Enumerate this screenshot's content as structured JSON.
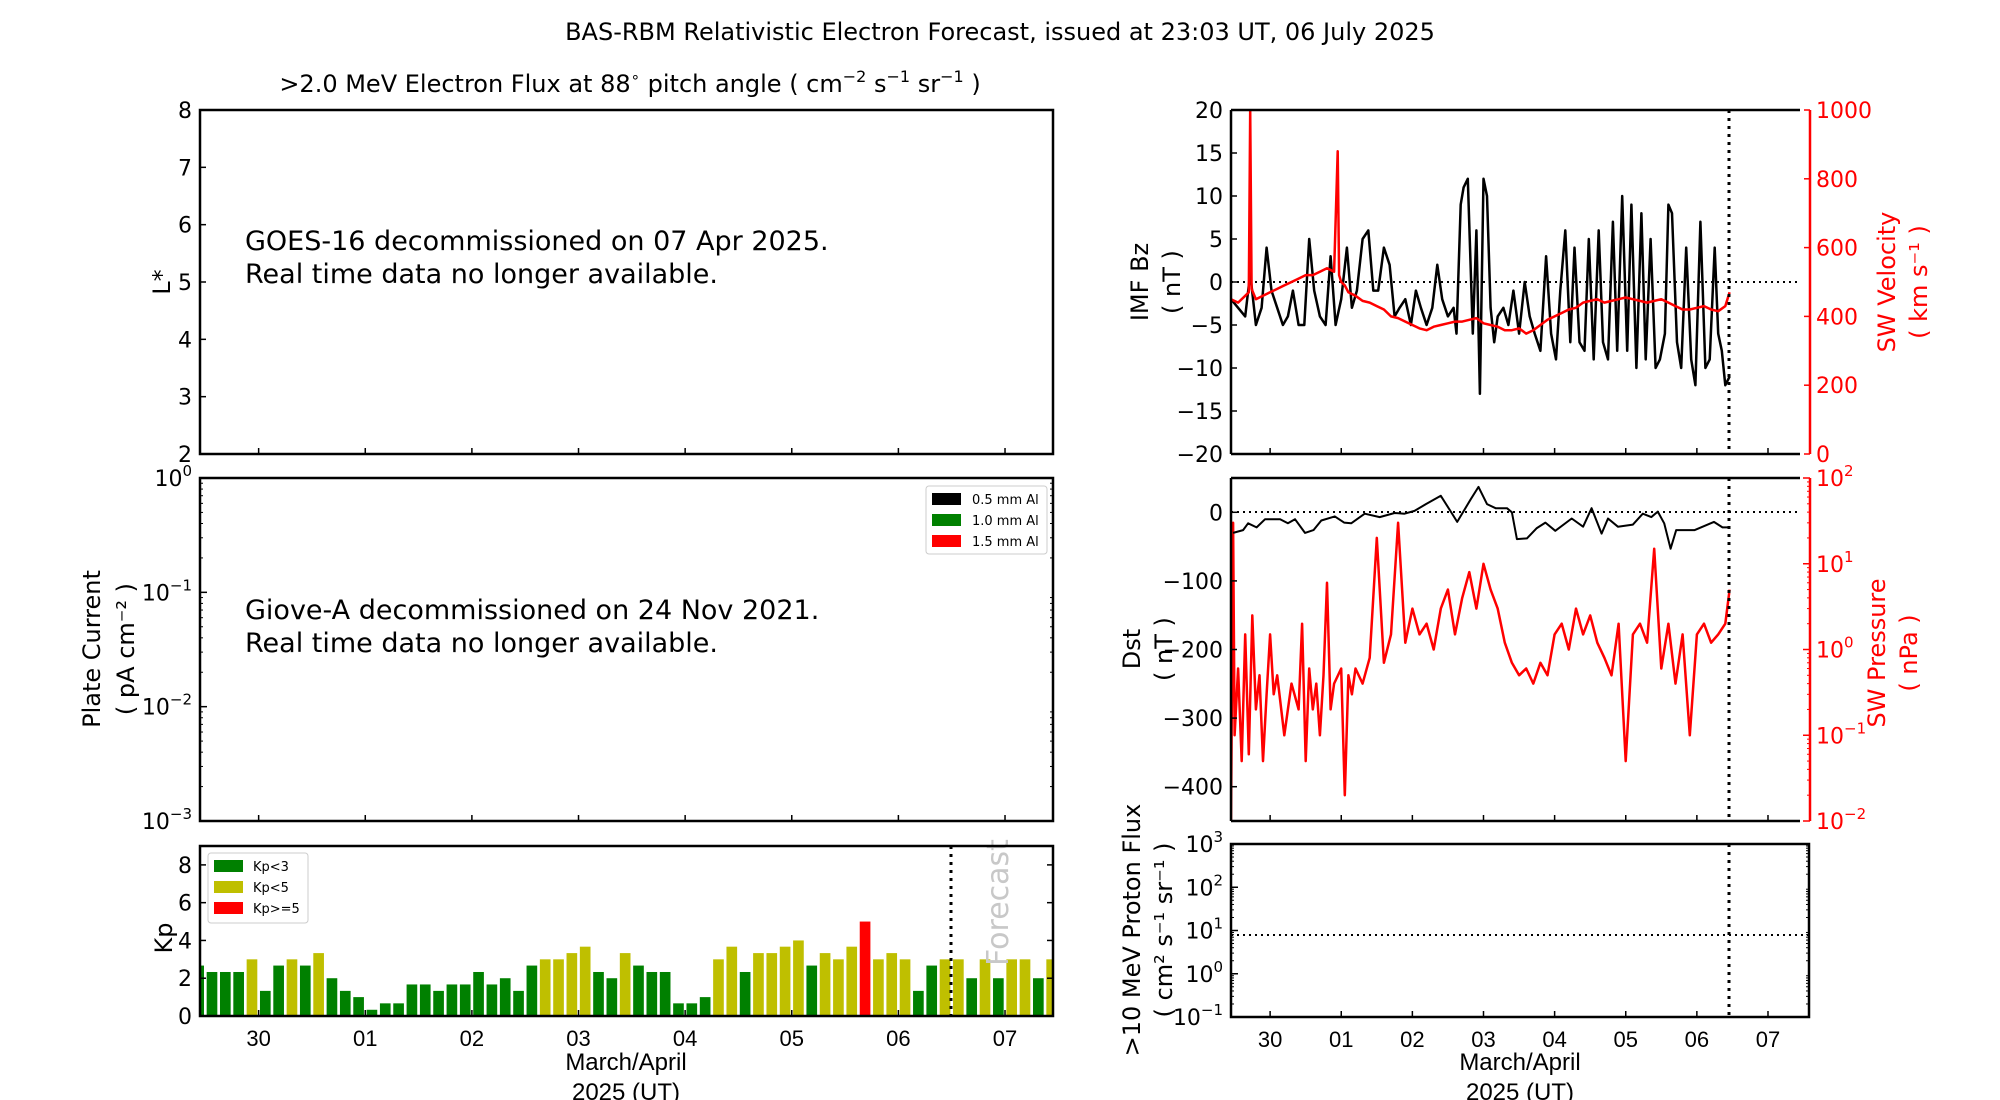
{
  "title": "BAS-RBM Relativistic Electron Forecast, issued at 23:03 UT, 06 July 2025",
  "x_axis": {
    "unit": "days since first labelled tick",
    "range": [
      -0.55,
      7.45
    ],
    "ticks": [
      0,
      1,
      2,
      3,
      4,
      5,
      6,
      7
    ],
    "tick_labels": [
      "30",
      "01",
      "02",
      "03",
      "04",
      "05",
      "06",
      "07"
    ],
    "xlabel_line1": "March/April",
    "xlabel_line2": "2025 (UT)",
    "issue_marker_day": 6.46
  },
  "chart_data": [
    {
      "id": "electron_flux",
      "type": "heatmap",
      "title": ">2.0 MeV Electron Flux at 88° pitch angle ( cm⁻² s⁻¹ sr⁻¹ )",
      "title_parts": {
        "main": ">2.0 MeV Electron Flux at 88",
        "deg": "∘",
        "rest": " pitch angle ( cm",
        "sup1": "−2",
        "s": " s",
        "sup2": "−1",
        "sr": " sr",
        "sup3": "−1",
        "close": " )"
      },
      "ylabel": "L*",
      "ylim": [
        2,
        8
      ],
      "yticks": [
        2,
        3,
        4,
        5,
        6,
        7,
        8
      ],
      "notice_line1": "GOES-16 decommissioned on 07 Apr 2025.",
      "notice_line2": "Real time data no longer available."
    },
    {
      "id": "plate_current",
      "type": "line",
      "ylabel_line1": "Plate Current",
      "ylabel_line2": "( pA cm⁻² )",
      "yscale": "log",
      "ylim": [
        0.001,
        1
      ],
      "yticks": [
        {
          "base": "10",
          "exp": "−3"
        },
        {
          "base": "10",
          "exp": "−2"
        },
        {
          "base": "10",
          "exp": "−1"
        },
        {
          "base": "10",
          "exp": "0"
        }
      ],
      "legend": [
        {
          "label": "0.5 mm Al",
          "color": "#000000"
        },
        {
          "label": "1.0 mm Al",
          "color": "#008000"
        },
        {
          "label": "1.5 mm Al",
          "color": "#ff0000"
        }
      ],
      "legend_position": "top-right",
      "notice_line1": "Giove-A decommissioned on 24 Nov 2021.",
      "notice_line2": "Real time data no longer available.",
      "series": []
    },
    {
      "id": "kp",
      "type": "bar",
      "ylabel": "Kp",
      "ylim": [
        0,
        9
      ],
      "yticks": [
        0,
        2,
        4,
        6,
        8
      ],
      "bar_interval_hours": 3,
      "first_bar_center_day": -0.5625,
      "legend": [
        {
          "label": "Kp<3",
          "color": "#008000"
        },
        {
          "label": "Kp<5",
          "color": "#bfbf00"
        },
        {
          "label": "Kp>=5",
          "color": "#ff0000"
        }
      ],
      "legend_position": "top-left",
      "forecast_label": "Forecast",
      "values": [
        2.67,
        2.33,
        2.33,
        2.33,
        3.0,
        1.33,
        2.67,
        3.0,
        2.67,
        3.33,
        2.0,
        1.33,
        1.0,
        0.33,
        0.67,
        0.67,
        1.67,
        1.67,
        1.33,
        1.67,
        1.67,
        2.33,
        1.67,
        2.0,
        1.33,
        2.67,
        3.0,
        3.0,
        3.33,
        3.67,
        2.33,
        2.0,
        3.33,
        2.67,
        2.33,
        2.33,
        0.67,
        0.67,
        1.0,
        3.0,
        3.67,
        2.33,
        3.33,
        3.33,
        3.67,
        4.0,
        2.67,
        3.33,
        3.0,
        3.67,
        5.0,
        3.0,
        3.33,
        3.0,
        1.33,
        2.67,
        3.0,
        3.0,
        2.0,
        3.0,
        2.0,
        3.0,
        3.0,
        2.0,
        3.0
      ]
    },
    {
      "id": "imf_sw_velocity",
      "type": "line",
      "ylabel_line1": "IMF Bz",
      "ylabel_line2": "( nT )",
      "ylim": [
        -20,
        20
      ],
      "yticks": [
        -20,
        -15,
        -10,
        -5,
        0,
        5,
        10,
        15,
        20
      ],
      "y2label_line1": "SW Velocity",
      "y2label_line2": "( km s⁻¹ )",
      "y2lim": [
        0,
        1000
      ],
      "y2ticks": [
        0,
        200,
        400,
        600,
        800,
        1000
      ],
      "reference_line_y": 0,
      "series": [
        {
          "name": "IMF Bz",
          "axis": "left",
          "color": "#000000",
          "x": [
            -0.55,
            -0.45,
            -0.35,
            -0.28,
            -0.2,
            -0.12,
            -0.05,
            0.02,
            0.1,
            0.18,
            0.25,
            0.32,
            0.4,
            0.48,
            0.55,
            0.62,
            0.7,
            0.78,
            0.85,
            0.92,
            1.0,
            1.08,
            1.15,
            1.22,
            1.3,
            1.38,
            1.45,
            1.52,
            1.6,
            1.68,
            1.75,
            1.82,
            1.9,
            1.98,
            2.05,
            2.12,
            2.2,
            2.28,
            2.35,
            2.42,
            2.5,
            2.58,
            2.62,
            2.68,
            2.72,
            2.78,
            2.85,
            2.9,
            2.95,
            3.0,
            3.05,
            3.1,
            3.15,
            3.2,
            3.28,
            3.35,
            3.42,
            3.5,
            3.58,
            3.65,
            3.72,
            3.8,
            3.88,
            3.95,
            4.02,
            4.08,
            4.15,
            4.22,
            4.28,
            4.35,
            4.42,
            4.48,
            4.55,
            4.62,
            4.68,
            4.75,
            4.82,
            4.88,
            4.95,
            5.02,
            5.08,
            5.15,
            5.22,
            5.28,
            5.35,
            5.42,
            5.48,
            5.55,
            5.6,
            5.65,
            5.72,
            5.78,
            5.85,
            5.92,
            5.98,
            6.05,
            6.12,
            6.18,
            6.25,
            6.3,
            6.35,
            6.4,
            6.46
          ],
          "y": [
            -2,
            -3,
            -4,
            1,
            -5,
            -3,
            4,
            -1,
            -3,
            -5,
            -4,
            -1,
            -5,
            -5,
            5,
            -1,
            -4,
            -5,
            3,
            -5,
            -2,
            4,
            -3,
            -1,
            5,
            6,
            -1,
            -1,
            4,
            2,
            -4,
            -3,
            -2,
            -5,
            -1,
            -3,
            -5,
            -3,
            2,
            -2,
            -4,
            -3,
            -6,
            9,
            11,
            12,
            -6,
            6,
            -13,
            12,
            10,
            -3,
            -7,
            -4,
            -3,
            -5,
            -1,
            -6,
            0,
            -4,
            -6,
            -8,
            3,
            -6,
            -9,
            -1,
            6,
            -7,
            4,
            -7,
            -8,
            5,
            -9,
            6,
            -7,
            -9,
            7,
            -8,
            10,
            -8,
            9,
            -10,
            8,
            -9,
            5,
            -10,
            -9,
            -6,
            9,
            8,
            -7,
            -10,
            4,
            -9,
            -12,
            7,
            -10,
            -9,
            4,
            -6,
            -8,
            -12,
            -11
          ]
        },
        {
          "name": "SW Velocity",
          "axis": "right",
          "color": "#ff0000",
          "x": [
            -0.55,
            -0.45,
            -0.35,
            -0.3,
            -0.28,
            -0.26,
            -0.2,
            -0.1,
            0.0,
            0.1,
            0.2,
            0.3,
            0.4,
            0.5,
            0.6,
            0.7,
            0.8,
            0.9,
            0.95,
            0.97,
            1.0,
            1.05,
            1.1,
            1.2,
            1.3,
            1.4,
            1.5,
            1.6,
            1.7,
            1.8,
            1.9,
            2.0,
            2.1,
            2.2,
            2.3,
            2.4,
            2.5,
            2.6,
            2.7,
            2.8,
            2.9,
            3.0,
            3.1,
            3.2,
            3.3,
            3.4,
            3.5,
            3.6,
            3.7,
            3.8,
            3.9,
            4.0,
            4.1,
            4.2,
            4.3,
            4.4,
            4.5,
            4.6,
            4.7,
            4.8,
            4.9,
            5.0,
            5.1,
            5.2,
            5.3,
            5.4,
            5.5,
            5.6,
            5.7,
            5.8,
            5.9,
            6.0,
            6.1,
            6.2,
            6.3,
            6.4,
            6.46
          ],
          "y": [
            450,
            440,
            460,
            470,
            1000,
            480,
            450,
            460,
            470,
            480,
            490,
            500,
            510,
            520,
            520,
            530,
            540,
            530,
            880,
            520,
            500,
            490,
            470,
            460,
            445,
            440,
            430,
            420,
            400,
            395,
            385,
            375,
            365,
            360,
            370,
            375,
            380,
            385,
            385,
            390,
            395,
            380,
            375,
            370,
            360,
            360,
            365,
            350,
            360,
            375,
            390,
            400,
            410,
            420,
            425,
            440,
            445,
            450,
            440,
            445,
            450,
            455,
            450,
            445,
            440,
            445,
            450,
            440,
            430,
            420,
            420,
            425,
            430,
            420,
            415,
            430,
            470
          ]
        }
      ]
    },
    {
      "id": "dst_sw_pressure",
      "type": "line",
      "ylabel_line1": "Dst",
      "ylabel_line2": "( nT )",
      "ylim": [
        -450,
        50
      ],
      "yticks": [
        -400,
        -300,
        -200,
        -100,
        0
      ],
      "y2label_line1": "SW Pressure",
      "y2label_line2": "( nPa )",
      "y2scale": "log",
      "y2lim": [
        0.01,
        100
      ],
      "y2ticks": [
        {
          "base": "10",
          "exp": "−2"
        },
        {
          "base": "10",
          "exp": "−1"
        },
        {
          "base": "10",
          "exp": "0"
        },
        {
          "base": "10",
          "exp": "1"
        },
        {
          "base": "10",
          "exp": "2"
        }
      ],
      "reference_line_y": 0,
      "series": [
        {
          "name": "Dst",
          "axis": "left",
          "color": "#000000",
          "x": [
            -0.52,
            -0.38,
            -0.31,
            -0.19,
            -0.07,
            0.14,
            0.25,
            0.35,
            0.49,
            0.61,
            0.72,
            0.91,
            1.04,
            1.14,
            1.33,
            1.54,
            1.75,
            1.89,
            2.03,
            2.19,
            2.4,
            2.54,
            2.63,
            2.82,
            2.93,
            3.05,
            3.17,
            3.33,
            3.4,
            3.47,
            3.61,
            3.75,
            3.87,
            4.01,
            4.24,
            4.4,
            4.52,
            4.66,
            4.75,
            4.89,
            5.1,
            5.24,
            5.36,
            5.45,
            5.54,
            5.63,
            5.71,
            5.97,
            6.24,
            6.36,
            6.44
          ],
          "y": [
            -30,
            -26,
            -16,
            -22,
            -10,
            -10,
            -16,
            -10,
            -30,
            -26,
            -12,
            -6,
            -15,
            -16,
            -2,
            -7,
            -1,
            -2,
            2,
            12,
            24,
            1,
            -14,
            19,
            37,
            12,
            6,
            6,
            0,
            -39,
            -38,
            -23,
            -15,
            -27,
            -9,
            -21,
            6,
            -31,
            -9,
            -21,
            -18,
            -2,
            -7,
            1,
            -16,
            -53,
            -26,
            -26,
            -14,
            -22,
            -22
          ]
        },
        {
          "name": "SW Pressure",
          "axis": "right",
          "color": "#ff0000",
          "x": [
            -0.55,
            -0.52,
            -0.5,
            -0.45,
            -0.4,
            -0.35,
            -0.3,
            -0.25,
            -0.2,
            -0.15,
            -0.1,
            -0.05,
            0.0,
            0.05,
            0.1,
            0.2,
            0.3,
            0.4,
            0.45,
            0.5,
            0.55,
            0.6,
            0.65,
            0.7,
            0.75,
            0.8,
            0.85,
            0.9,
            1.0,
            1.05,
            1.1,
            1.15,
            1.2,
            1.3,
            1.4,
            1.5,
            1.6,
            1.7,
            1.8,
            1.9,
            2.0,
            2.1,
            2.2,
            2.3,
            2.4,
            2.5,
            2.6,
            2.7,
            2.8,
            2.9,
            3.0,
            3.1,
            3.2,
            3.3,
            3.4,
            3.5,
            3.6,
            3.7,
            3.8,
            3.9,
            4.0,
            4.1,
            4.2,
            4.3,
            4.4,
            4.5,
            4.6,
            4.7,
            4.8,
            4.9,
            5.0,
            5.1,
            5.2,
            5.3,
            5.4,
            5.5,
            5.6,
            5.7,
            5.8,
            5.9,
            6.0,
            6.1,
            6.2,
            6.3,
            6.4,
            6.46
          ],
          "y": [
            0.01,
            30,
            0.1,
            0.6,
            0.05,
            1.5,
            0.06,
            2.5,
            0.2,
            0.5,
            0.05,
            0.3,
            1.5,
            0.3,
            0.5,
            0.1,
            0.4,
            0.2,
            2,
            0.05,
            0.6,
            0.2,
            0.4,
            0.1,
            0.5,
            6,
            0.2,
            0.4,
            0.6,
            0.02,
            0.5,
            0.3,
            0.6,
            0.4,
            0.8,
            20,
            0.7,
            1.5,
            30,
            1.2,
            3,
            1.5,
            2,
            1.0,
            3,
            5,
            1.5,
            4,
            8,
            3,
            10,
            5,
            3,
            1.2,
            0.7,
            0.5,
            0.6,
            0.4,
            0.7,
            0.5,
            1.5,
            2,
            1.0,
            3,
            1.5,
            2.5,
            1.2,
            0.8,
            0.5,
            2,
            0.05,
            1.5,
            2,
            1.2,
            15,
            0.6,
            2,
            0.4,
            1.5,
            0.1,
            1.5,
            2,
            1.2,
            1.5,
            2,
            5
          ]
        }
      ]
    },
    {
      "id": "proton_flux",
      "type": "line",
      "ylabel_line1": ">10 MeV Proton Flux",
      "ylabel_line2": "( cm² s⁻¹ sr⁻¹ )",
      "yscale": "log",
      "ylim": [
        0.1,
        1000
      ],
      "yticks": [
        {
          "base": "10",
          "exp": "−1"
        },
        {
          "base": "10",
          "exp": "0"
        },
        {
          "base": "10",
          "exp": "1"
        },
        {
          "base": "10",
          "exp": "2"
        },
        {
          "base": "10",
          "exp": "3"
        }
      ],
      "reference_line_y": 10,
      "series": []
    }
  ]
}
